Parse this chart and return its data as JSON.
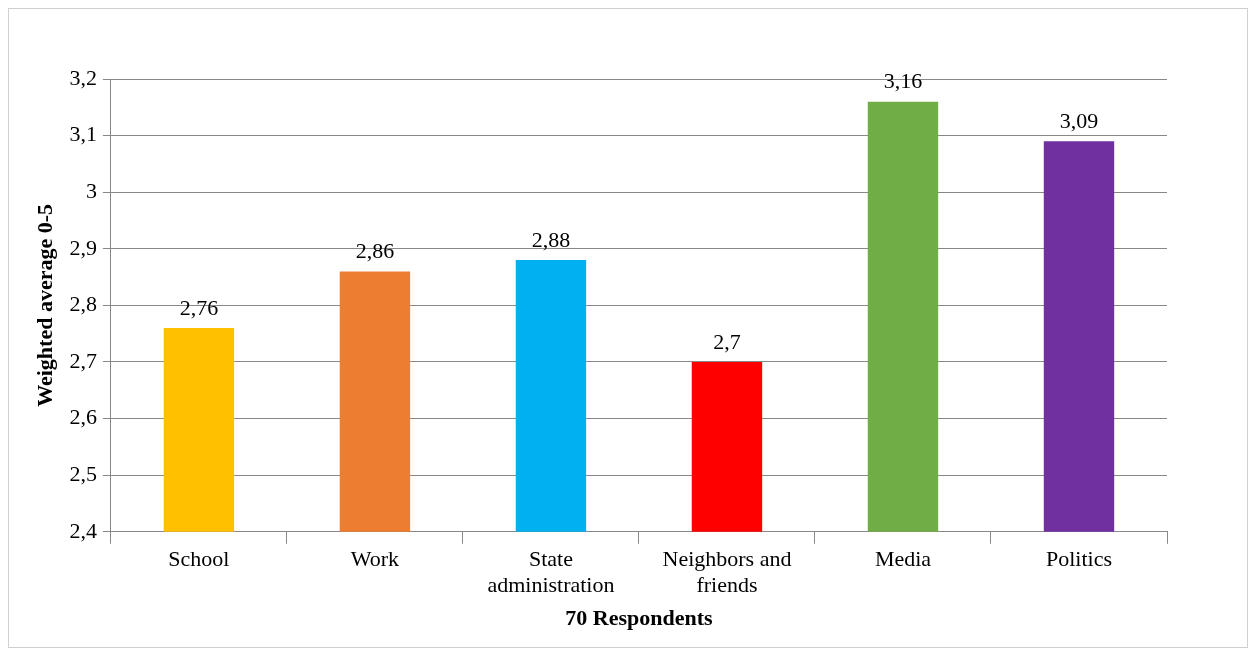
{
  "chart_data": {
    "type": "bar",
    "xlabel": "70 Respondents",
    "ylabel": "Weighted average 0-5",
    "categories": [
      "School",
      "Work",
      "State administration",
      "Neighbors and friends",
      "Media",
      "Politics"
    ],
    "values": [
      2.76,
      2.86,
      2.88,
      2.7,
      3.16,
      3.09
    ],
    "colors": [
      "#ffc000",
      "#ed7d31",
      "#00b0f0",
      "#ff0000",
      "#70ad47",
      "#7030a0"
    ],
    "value_labels": [
      "2,76",
      "2,86",
      "2,88",
      "2,7",
      "3,16",
      "3,09"
    ],
    "ylim": [
      2.4,
      3.2
    ],
    "yticks": [
      {
        "value": 2.4,
        "label": "2,4"
      },
      {
        "value": 2.5,
        "label": "2,5"
      },
      {
        "value": 2.6,
        "label": "2,6"
      },
      {
        "value": 2.7,
        "label": "2,7"
      },
      {
        "value": 2.8,
        "label": "2,8"
      },
      {
        "value": 2.9,
        "label": "2,9"
      },
      {
        "value": 3,
        "label": "3"
      },
      {
        "value": 3.1,
        "label": "3,1"
      },
      {
        "value": 3.2,
        "label": "3,2"
      }
    ],
    "grid": "y",
    "legend": false
  }
}
